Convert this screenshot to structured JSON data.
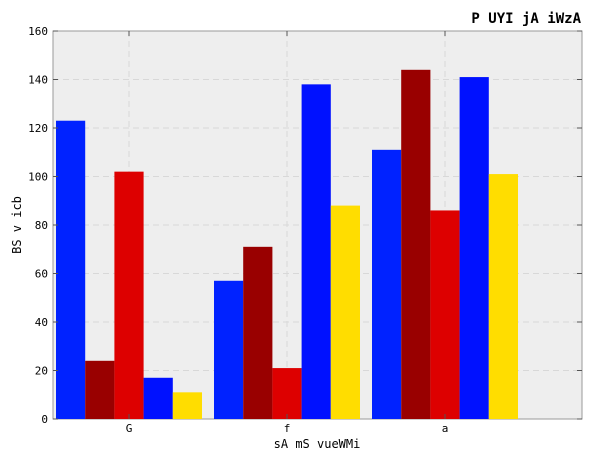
{
  "chart_data": {
    "type": "bar",
    "title": "P UYI jA iWzA",
    "xlabel": "sA mS vueWMi",
    "ylabel": "BS v icb",
    "categories": [
      "G",
      "f",
      "a"
    ],
    "ylim": [
      0,
      160
    ],
    "yticks": [
      0,
      20,
      40,
      60,
      80,
      100,
      120,
      140,
      160
    ],
    "grid": true,
    "series": [
      {
        "color": "#0022ff",
        "values": [
          123,
          57,
          111
        ]
      },
      {
        "color": "#990000",
        "values": [
          24,
          71,
          144
        ]
      },
      {
        "color": "#dd0000",
        "values": [
          102,
          21,
          86
        ]
      },
      {
        "color": "#0011ff",
        "values": [
          17,
          138,
          141
        ]
      },
      {
        "color": "#ffdd00",
        "values": [
          11,
          88,
          101
        ]
      }
    ]
  }
}
